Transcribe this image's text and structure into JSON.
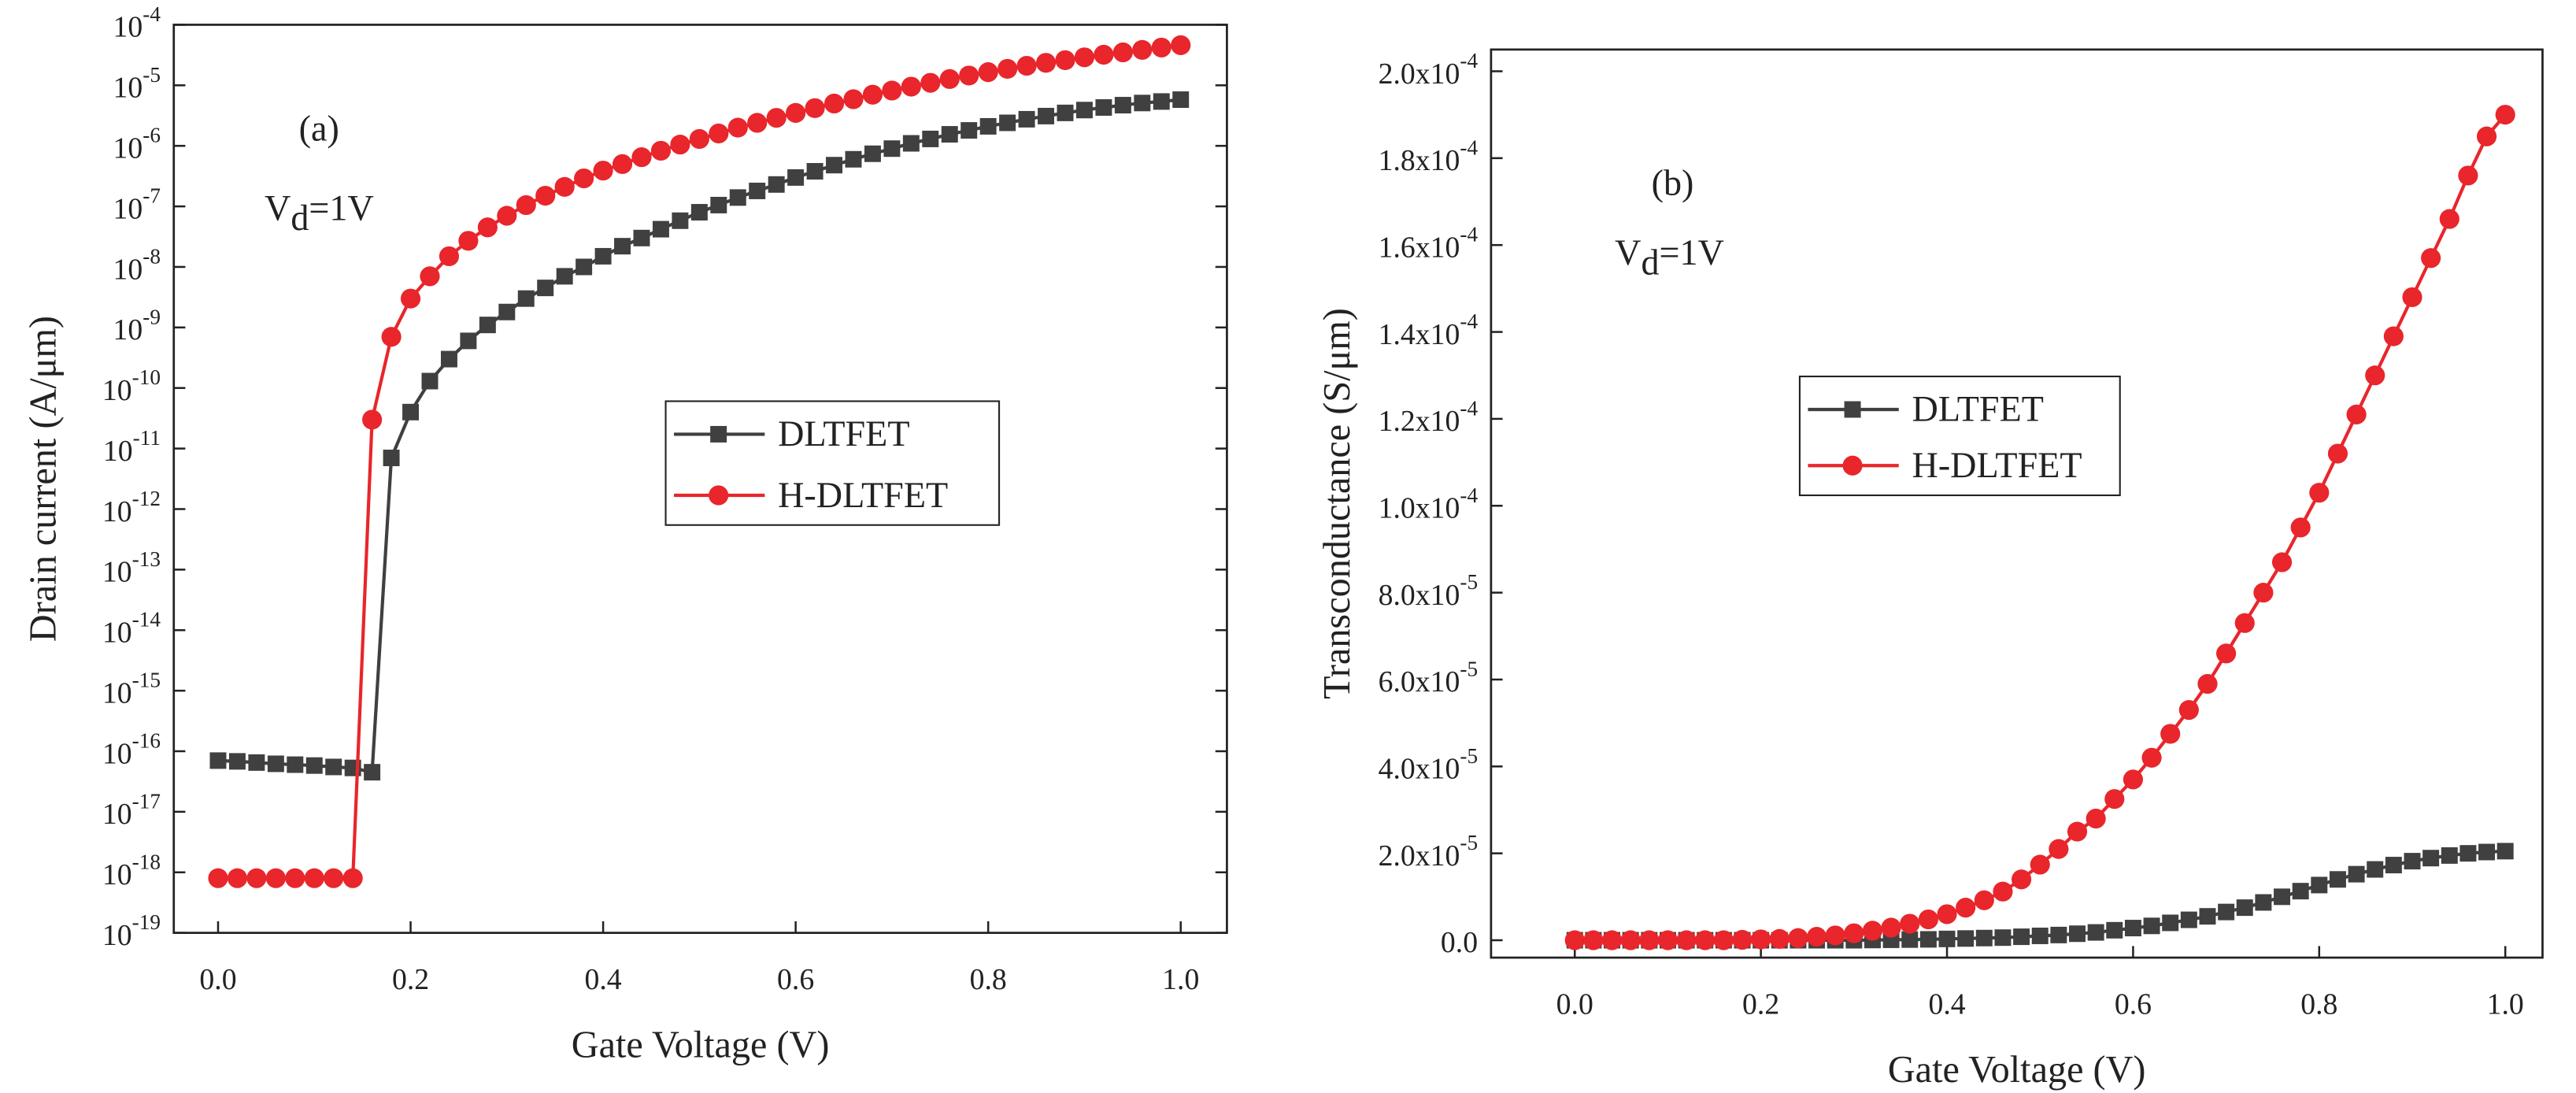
{
  "chart_data": [
    {
      "type": "line",
      "panel": "(a)",
      "annotation": "Vd=1V",
      "xlabel": "Gate Voltage (V)",
      "ylabel": "Drain current (A/μm)",
      "yscale": "log",
      "xlim": [
        -0.046,
        1.048
      ],
      "ylim": [
        1e-19,
        0.0001
      ],
      "xticks": [
        {
          "value": 0,
          "label": "0.0"
        },
        0.2,
        0.4,
        0.6,
        0.8,
        {
          "value": 1,
          "label": "1.0"
        }
      ],
      "yticks": [
        {
          "value": 1e-19,
          "label": "10-19"
        },
        {
          "value": 1e-18,
          "label": "10-18"
        },
        {
          "value": 1e-17,
          "label": "10-17"
        },
        {
          "value": 1e-16,
          "label": "10-16"
        },
        {
          "value": 1e-15,
          "label": "10-15"
        },
        {
          "value": 1e-14,
          "label": "10-14"
        },
        {
          "value": 1e-13,
          "label": "10-13"
        },
        {
          "value": 1e-12,
          "label": "10-12"
        },
        {
          "value": 1e-11,
          "label": "10-11"
        },
        {
          "value": 1e-10,
          "label": "10-10"
        },
        {
          "value": 1e-09,
          "label": "10-9"
        },
        {
          "value": 1e-08,
          "label": "10-8"
        },
        {
          "value": 1e-07,
          "label": "10-7"
        },
        {
          "value": 1e-06,
          "label": "10-6"
        },
        {
          "value": 1e-05,
          "label": "10-5"
        },
        {
          "value": 0.0001,
          "label": "10-4"
        }
      ],
      "x": [
        0,
        0.02,
        0.04,
        0.06,
        0.08,
        0.1,
        0.12,
        0.14,
        0.16,
        0.18,
        0.2,
        0.22,
        0.24,
        0.26,
        0.28,
        0.3,
        0.32,
        0.34,
        0.36,
        0.38,
        0.4,
        0.42,
        0.44,
        0.46,
        0.48,
        0.5,
        0.52,
        0.54,
        0.56,
        0.58,
        0.6,
        0.62,
        0.64,
        0.66,
        0.68,
        0.7,
        0.72,
        0.74,
        0.76,
        0.78,
        0.8,
        0.82,
        0.84,
        0.86,
        0.88,
        0.9,
        0.92,
        0.94,
        0.96,
        0.98,
        1
      ],
      "series": [
        {
          "name": "DLTFET",
          "color": "#404040",
          "marker": "square",
          "values": [
            7e-17,
            6.8e-17,
            6.5e-17,
            6.2e-17,
            6e-17,
            5.8e-17,
            5.5e-17,
            5.3e-17,
            4.5e-17,
            7e-12,
            4e-11,
            1.3e-10,
            3e-10,
            6e-10,
            1.1e-09,
            1.8e-09,
            3e-09,
            4.5e-09,
            7e-09,
            1e-08,
            1.5e-08,
            2.2e-08,
            3e-08,
            4.2e-08,
            5.8e-08,
            8e-08,
            1.05e-07,
            1.4e-07,
            1.8e-07,
            2.3e-07,
            3e-07,
            3.8e-07,
            4.8e-07,
            6e-07,
            7.4e-07,
            9e-07,
            1.1e-06,
            1.3e-06,
            1.55e-06,
            1.8e-06,
            2.1e-06,
            2.4e-06,
            2.75e-06,
            3.1e-06,
            3.5e-06,
            3.9e-06,
            4.3e-06,
            4.7e-06,
            5.1e-06,
            5.4e-06,
            5.8e-06
          ]
        },
        {
          "name": "H-DLTFET",
          "color": "#e8262b",
          "marker": "circle",
          "values": [
            8e-19,
            8e-19,
            8e-19,
            8e-19,
            8e-19,
            8e-19,
            8e-19,
            8e-19,
            3e-11,
            7e-10,
            3e-09,
            7e-09,
            1.5e-08,
            2.7e-08,
            4.5e-08,
            7e-08,
            1.05e-07,
            1.5e-07,
            2.1e-07,
            2.9e-07,
            3.9e-07,
            5e-07,
            6.5e-07,
            8.3e-07,
            1.05e-06,
            1.3e-06,
            1.6e-06,
            2e-06,
            2.4e-06,
            2.9e-06,
            3.5e-06,
            4.2e-06,
            5e-06,
            5.9e-06,
            7e-06,
            8.2e-06,
            9.5e-06,
            1.1e-05,
            1.27e-05,
            1.45e-05,
            1.65e-05,
            1.87e-05,
            2.1e-05,
            2.35e-05,
            2.6e-05,
            2.9e-05,
            3.2e-05,
            3.5e-05,
            3.85e-05,
            4.2e-05,
            4.6e-05
          ]
        }
      ]
    },
    {
      "type": "line",
      "panel": "(b)",
      "annotation": "Vd=1V",
      "xlabel": "Gate Voltage (V)",
      "ylabel": "Transconductance (S/μm)",
      "yscale": "linear",
      "xlim": [
        -0.09,
        1.04
      ],
      "ylim": [
        -4e-06,
        0.000205
      ],
      "xticks": [
        {
          "value": 0,
          "label": "0.0"
        },
        0.2,
        0.4,
        0.6,
        0.8,
        {
          "value": 1,
          "label": "1.0"
        }
      ],
      "yticks": [
        {
          "value": 0,
          "label": "0.0"
        },
        {
          "value": 2e-05,
          "label": "2.0x10-5"
        },
        {
          "value": 4e-05,
          "label": "4.0x10-5"
        },
        {
          "value": 6e-05,
          "label": "6.0x10-5"
        },
        {
          "value": 8e-05,
          "label": "8.0x10-5"
        },
        {
          "value": 0.0001,
          "label": "1.0x10-4"
        },
        {
          "value": 0.00012,
          "label": "1.2x10-4"
        },
        {
          "value": 0.00014,
          "label": "1.4x10-4"
        },
        {
          "value": 0.00016,
          "label": "1.6x10-4"
        },
        {
          "value": 0.00018,
          "label": "1.8x10-4"
        },
        {
          "value": 0.0002,
          "label": "2.0x10-4"
        }
      ],
      "x": [
        0,
        0.02,
        0.04,
        0.06,
        0.08,
        0.1,
        0.12,
        0.14,
        0.16,
        0.18,
        0.2,
        0.22,
        0.24,
        0.26,
        0.28,
        0.3,
        0.32,
        0.34,
        0.36,
        0.38,
        0.4,
        0.42,
        0.44,
        0.46,
        0.48,
        0.5,
        0.52,
        0.54,
        0.56,
        0.58,
        0.6,
        0.62,
        0.64,
        0.66,
        0.68,
        0.7,
        0.72,
        0.74,
        0.76,
        0.78,
        0.8,
        0.82,
        0.84,
        0.86,
        0.88,
        0.9,
        0.92,
        0.94,
        0.96,
        0.98,
        1
      ],
      "series": [
        {
          "name": "DLTFET",
          "color": "#404040",
          "marker": "square",
          "values": [
            0,
            0,
            0,
            0,
            0,
            0,
            0,
            0,
            0,
            0,
            0,
            0,
            0,
            0,
            0,
            0,
            5e-08,
            1e-07,
            1.5e-07,
            2e-07,
            3e-07,
            4e-07,
            5e-07,
            6e-07,
            8e-07,
            1e-06,
            1.2e-06,
            1.5e-06,
            1.8e-06,
            2.3e-06,
            2.8e-06,
            3.3e-06,
            4e-06,
            4.7e-06,
            5.5e-06,
            6.5e-06,
            7.5e-06,
            8.7e-06,
            1e-05,
            1.13e-05,
            1.27e-05,
            1.4e-05,
            1.52e-05,
            1.63e-05,
            1.73e-05,
            1.82e-05,
            1.89e-05,
            1.95e-05,
            2e-05,
            2.03e-05,
            2.05e-05
          ]
        },
        {
          "name": "H-DLTFET",
          "color": "#e8262b",
          "marker": "circle",
          "values": [
            0,
            0,
            0,
            0,
            0,
            0,
            0,
            0,
            0,
            1e-07,
            2e-07,
            3e-07,
            5e-07,
            8e-07,
            1.1e-06,
            1.6e-06,
            2.2e-06,
            2.9e-06,
            3.8e-06,
            4.8e-06,
            6e-06,
            7.5e-06,
            9.2e-06,
            1.12e-05,
            1.4e-05,
            1.74e-05,
            2.1e-05,
            2.5e-05,
            2.8e-05,
            3.25e-05,
            3.7e-05,
            4.2e-05,
            4.75e-05,
            5.3e-05,
            5.9e-05,
            6.6e-05,
            7.3e-05,
            8e-05,
            8.7e-05,
            9.5e-05,
            0.000103,
            0.000112,
            0.000121,
            0.00013,
            0.000139,
            0.000148,
            0.000157,
            0.000166,
            0.000176,
            0.000185,
            0.00019
          ]
        }
      ]
    }
  ]
}
